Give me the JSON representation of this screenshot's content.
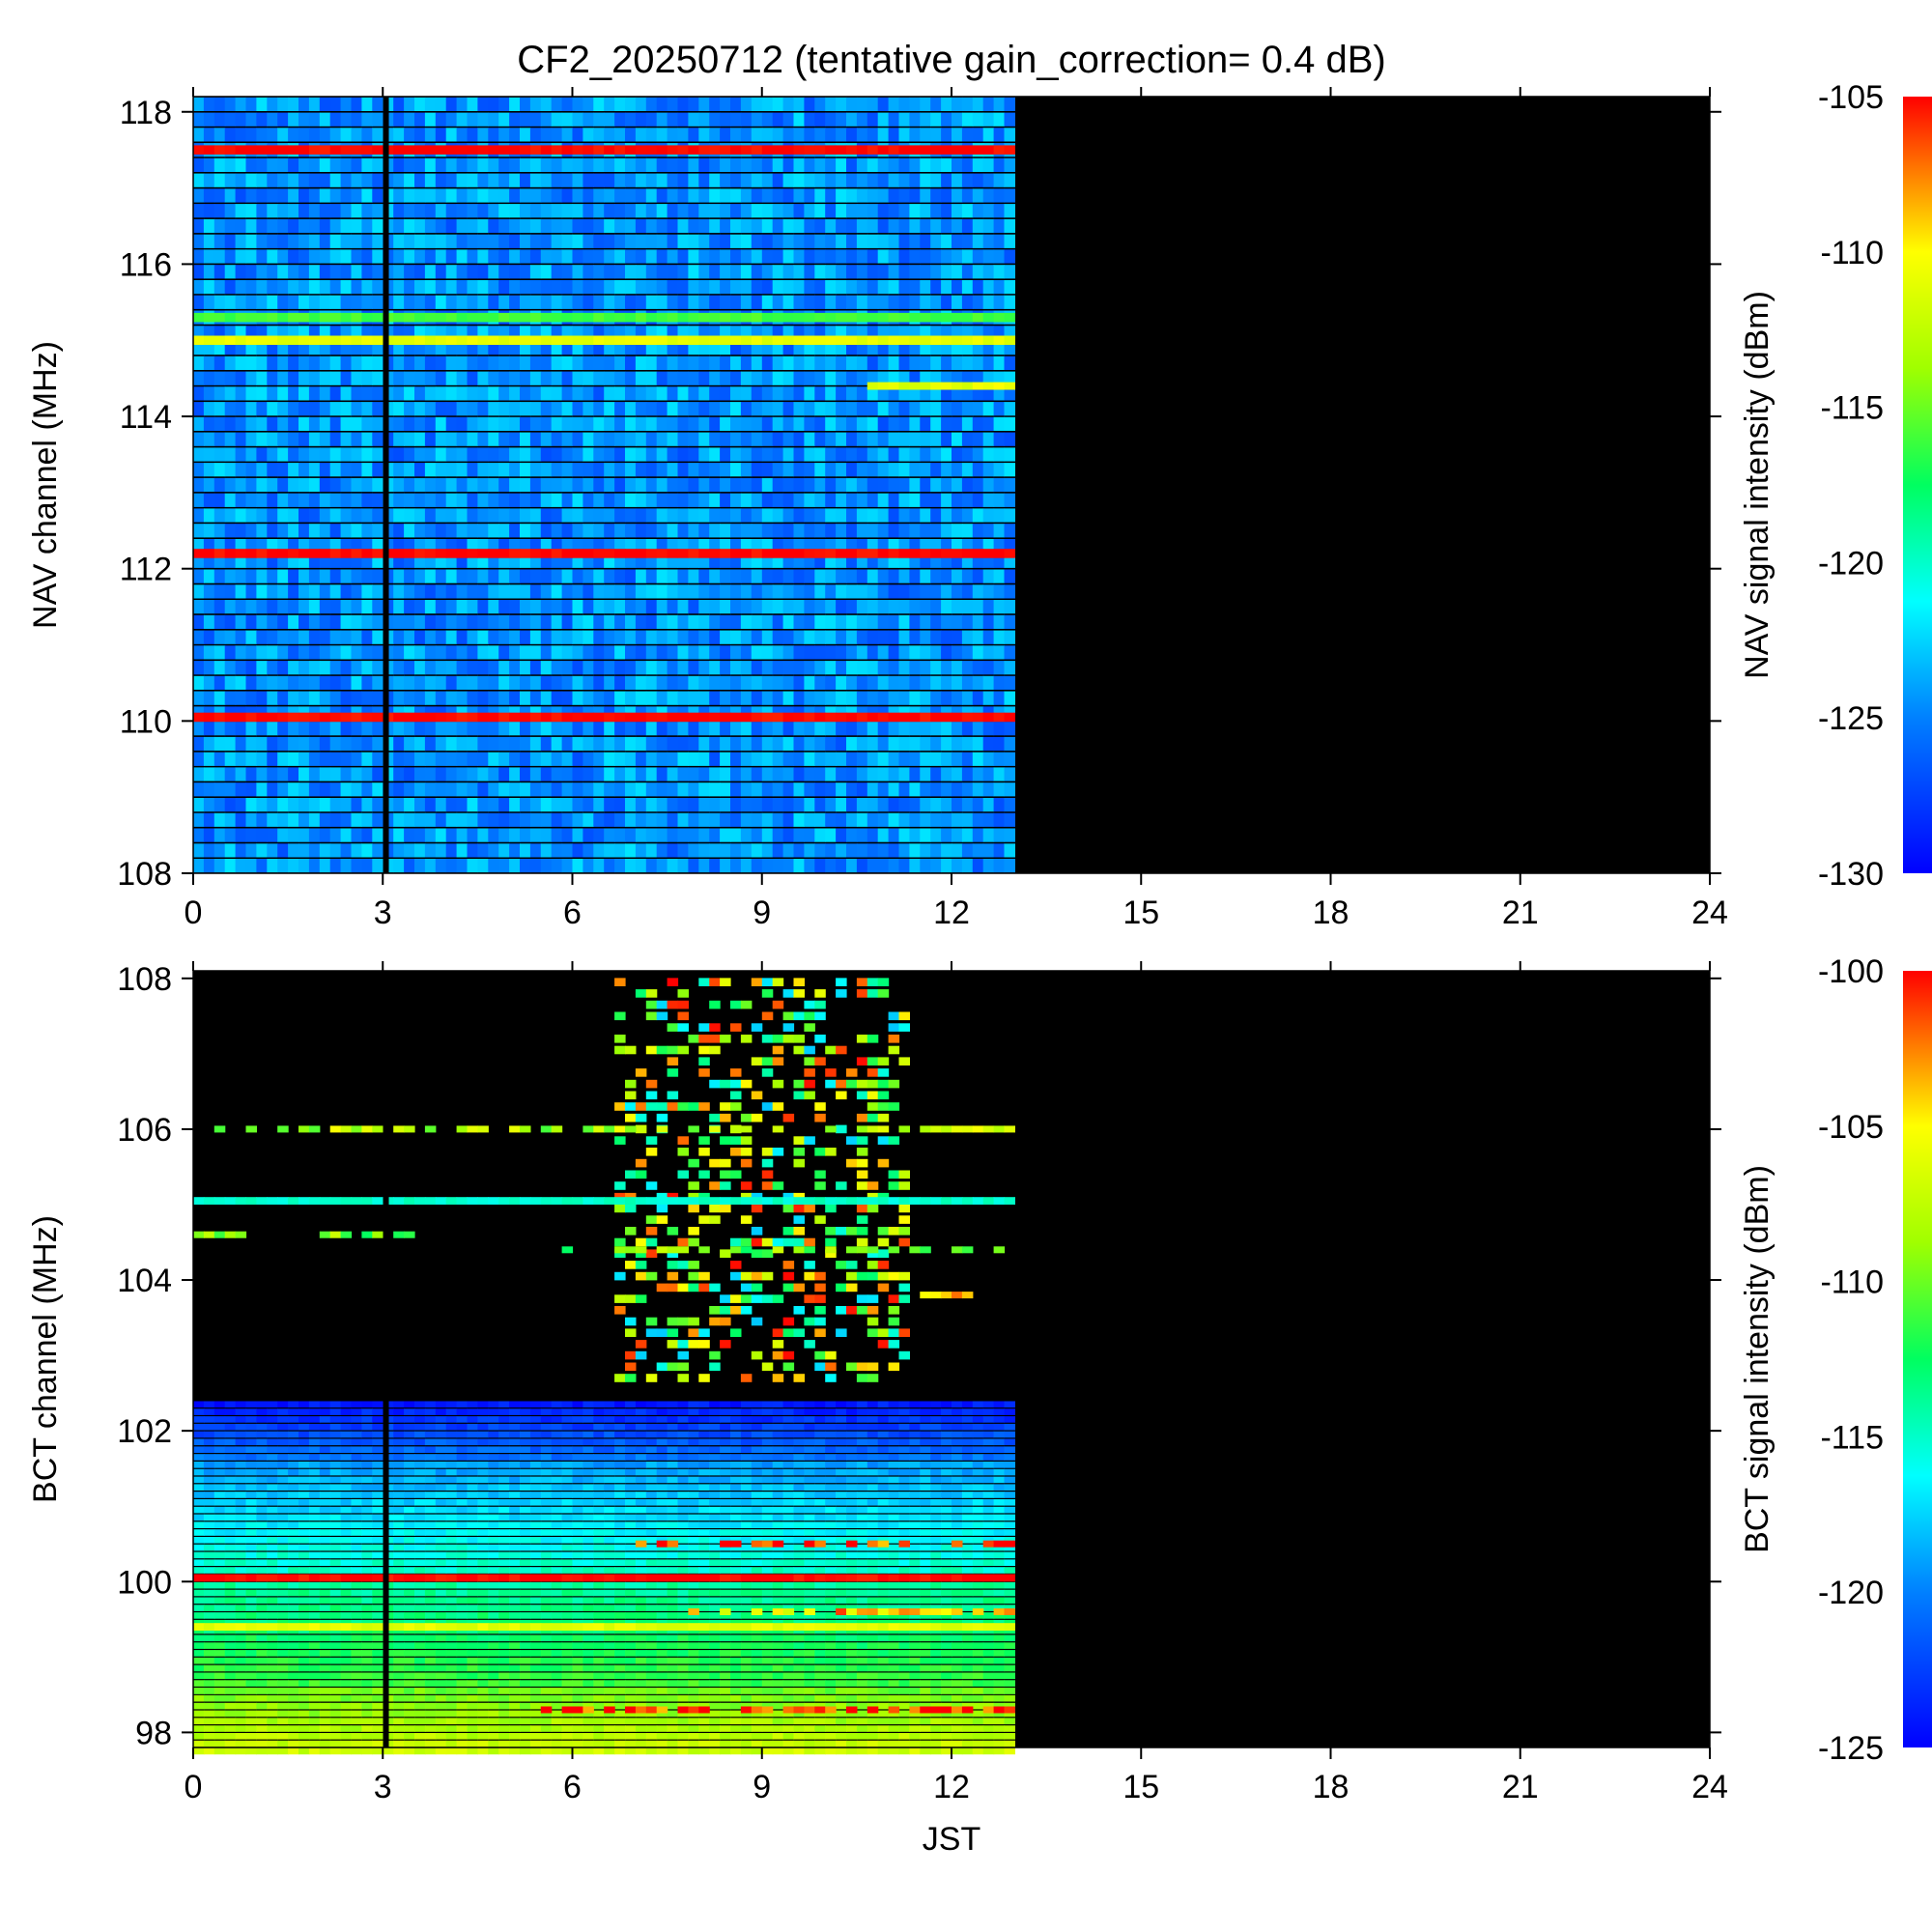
{
  "title": "CF2_20250712 (tentative gain_correction=  0.4 dB)",
  "chart_data": [
    {
      "type": "heatmap",
      "id": "nav",
      "ylabel": "NAV channel (MHz)",
      "xlabel": "",
      "colorbar_label": "NAV signal intensity (dBm)",
      "xlim": [
        0,
        24
      ],
      "ylim": [
        108,
        118.2
      ],
      "x_ticks": [
        "0",
        "3",
        "6",
        "9",
        "12",
        "15",
        "18",
        "21",
        "24"
      ],
      "y_ticks": [
        "108",
        "110",
        "112",
        "114",
        "116",
        "118"
      ],
      "colorbar_range": [
        -130,
        -105
      ],
      "colorbar_ticks": [
        "-105",
        "-110",
        "-115",
        "-120",
        "-125",
        "-130"
      ],
      "data_time_range": [
        0,
        13
      ],
      "gap_time": 3.05,
      "background_level": -124,
      "strong_channels": [
        {
          "freq": 117.5,
          "level": -105
        },
        {
          "freq": 115.3,
          "level": -116
        },
        {
          "freq": 115.0,
          "level": -111
        },
        {
          "freq": 112.2,
          "level": -105
        },
        {
          "freq": 110.05,
          "level": -105
        }
      ],
      "partial_channels": [
        {
          "freq": 114.4,
          "level": -111,
          "start": 10.6,
          "end": 13.0
        }
      ]
    },
    {
      "type": "heatmap",
      "id": "bct",
      "ylabel": "BCT channel (MHz)",
      "xlabel": "JST",
      "colorbar_label": "BCT signal intensity (dBm)",
      "xlim": [
        0,
        24
      ],
      "ylim": [
        97.8,
        108.1
      ],
      "x_ticks": [
        "0",
        "3",
        "6",
        "9",
        "12",
        "15",
        "18",
        "21",
        "24"
      ],
      "y_ticks": [
        "98",
        "100",
        "102",
        "104",
        "106",
        "108"
      ],
      "colorbar_range": [
        -125,
        -100
      ],
      "colorbar_ticks": [
        "-100",
        "-105",
        "-110",
        "-115",
        "-120",
        "-125"
      ],
      "data_time_range": [
        0,
        13
      ],
      "gap_time": 3.05,
      "gradient_bands": [
        {
          "from": 102.4,
          "to": 101.6,
          "level_top": -124,
          "level_bottom": -120
        },
        {
          "from": 101.6,
          "to": 100.2,
          "level_top": -119,
          "level_bottom": -115
        },
        {
          "from": 100.0,
          "to": 98.6,
          "level_top": -114,
          "level_bottom": -111
        },
        {
          "from": 98.6,
          "to": 97.8,
          "level_top": -110,
          "level_bottom": -107
        }
      ],
      "strong_channels": [
        {
          "freq": 105.05,
          "level": -115,
          "start": 0,
          "end": 13
        },
        {
          "freq": 100.05,
          "level": -100,
          "start": 0,
          "end": 13
        },
        {
          "freq": 99.4,
          "level": -106,
          "start": 0,
          "end": 13
        }
      ],
      "active_region": {
        "start": 6.6,
        "end": 11.2,
        "from": 102.6,
        "to": 108.1,
        "level_min": -118,
        "level_max": -100
      },
      "sparse_channels": [
        {
          "freq": 106.0,
          "start": 0,
          "end": 13,
          "level": -108
        },
        {
          "freq": 104.6,
          "start": 0,
          "end": 3.5,
          "level": -110
        },
        {
          "freq": 104.4,
          "start": 5.7,
          "end": 13,
          "level": -110
        },
        {
          "freq": 103.8,
          "start": 11.2,
          "end": 13,
          "level": -105
        },
        {
          "freq": 100.5,
          "start": 7.0,
          "end": 13,
          "level": -101
        },
        {
          "freq": 99.6,
          "start": 7.8,
          "end": 13,
          "level": -104
        },
        {
          "freq": 98.3,
          "start": 5.5,
          "end": 13,
          "level": -101
        }
      ]
    }
  ]
}
